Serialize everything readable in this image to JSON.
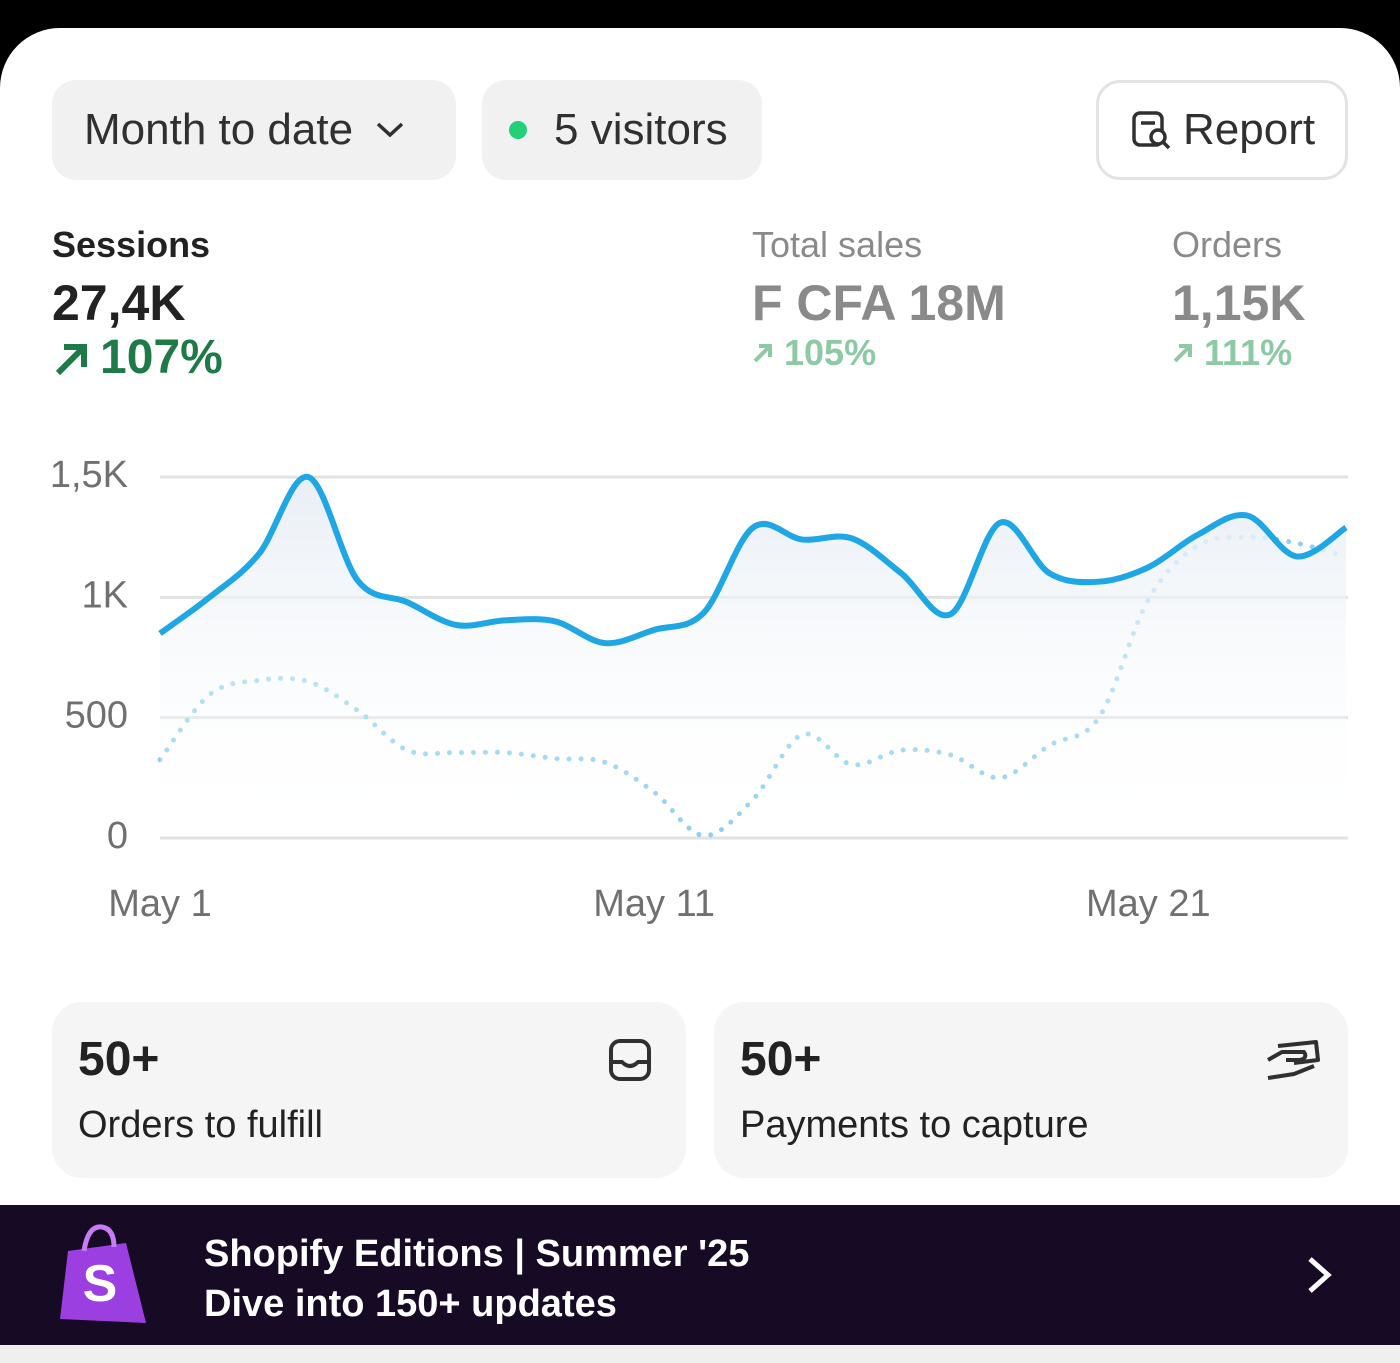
{
  "toolbar": {
    "range": "Month to date",
    "visitors": "5 visitors",
    "report": "Report"
  },
  "metrics": [
    {
      "label": "Sessions",
      "value": "27,4K",
      "change": "107%"
    },
    {
      "label": "Total sales",
      "value": "F CFA 18M",
      "change": "105%"
    },
    {
      "label": "Orders",
      "value": "1,15K",
      "change": "111%"
    }
  ],
  "chart_data": {
    "type": "line",
    "categories": [
      "May 1",
      null,
      null,
      null,
      null,
      null,
      null,
      null,
      null,
      null,
      "May 11",
      null,
      null,
      null,
      null,
      null,
      null,
      null,
      null,
      null,
      "May 21",
      null,
      null,
      null,
      null
    ],
    "series": [
      {
        "color": "#1ea7e4",
        "style": "solid",
        "values": [
          850,
          1000,
          1180,
          1500,
          1070,
          980,
          885,
          905,
          900,
          810,
          865,
          935,
          1290,
          1240,
          1245,
          1100,
          930,
          1310,
          1100,
          1065,
          1125,
          1260,
          1340,
          1170,
          1290
        ]
      },
      {
        "color": "#8fd0ee",
        "style": "dotted",
        "values": [
          325,
          595,
          655,
          650,
          530,
          365,
          355,
          355,
          330,
          315,
          190,
          10,
          160,
          430,
          305,
          365,
          345,
          250,
          385,
          500,
          990,
          1215,
          1250,
          1225,
          1170
        ]
      }
    ],
    "ylim": [
      0,
      1500
    ],
    "yticks": [
      0,
      500,
      {
        "value": 1000,
        "label": "1K"
      },
      {
        "value": 1500,
        "label": "1,5K"
      }
    ],
    "grid": true
  },
  "cards": [
    {
      "count": "50+",
      "label": "Orders to fulfill"
    },
    {
      "count": "50+",
      "label": "Payments to capture"
    }
  ],
  "banner": {
    "title": "Shopify Editions | Summer '25",
    "subtitle": "Dive into 150+ updates"
  }
}
